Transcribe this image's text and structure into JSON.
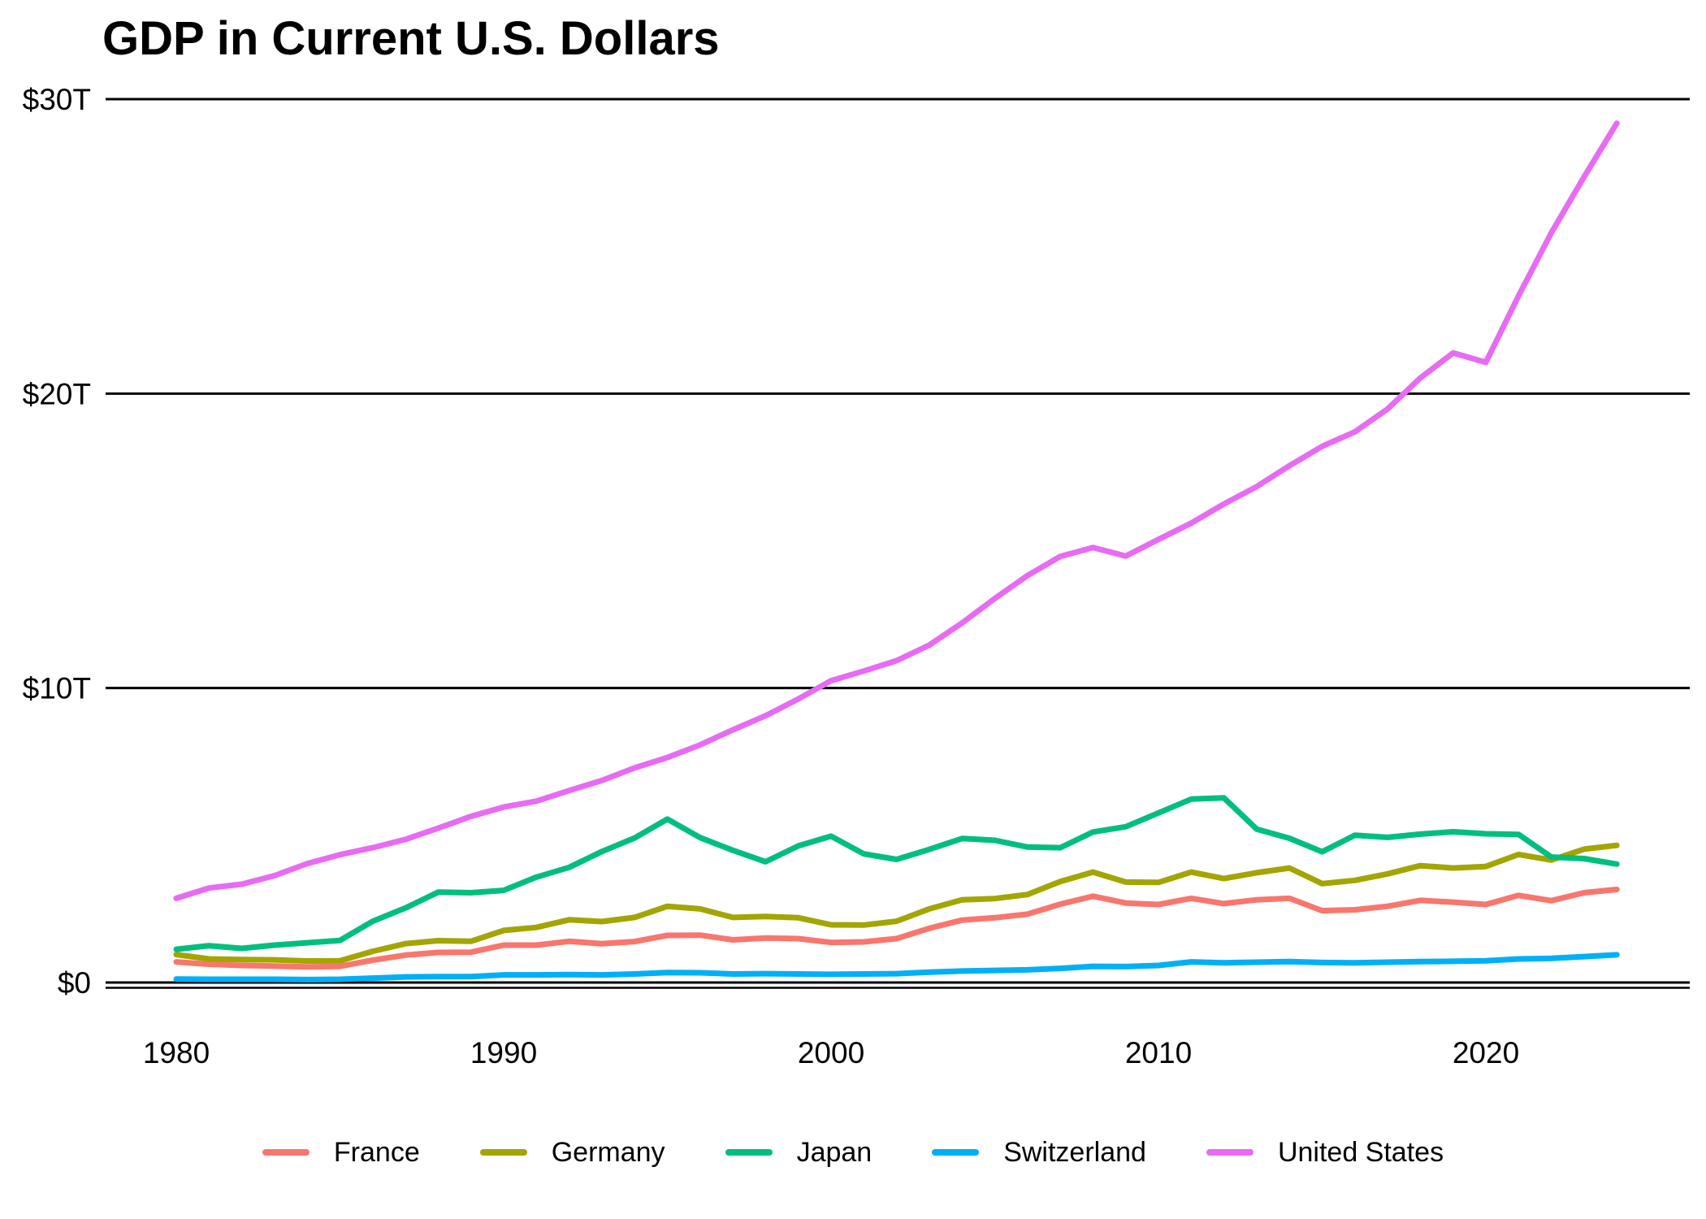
{
  "title": "GDP in Current U.S. Dollars",
  "chart_data": {
    "type": "line",
    "title": "GDP in Current U.S. Dollars",
    "unit": "trillions of current U.S. dollars",
    "grid": "horizontal-only",
    "legend_position": "bottom",
    "axis_color": "#000000",
    "xlim": [
      1980,
      2024
    ],
    "ylim": [
      0,
      30
    ],
    "x_ticks": [
      {
        "value": 1980,
        "label": "1980"
      },
      {
        "value": 1990,
        "label": "1990"
      },
      {
        "value": 2000,
        "label": "2000"
      },
      {
        "value": 2010,
        "label": "2010"
      },
      {
        "value": 2020,
        "label": "2020"
      }
    ],
    "y_ticks": [
      {
        "value": 0,
        "label": "$0"
      },
      {
        "value": 10,
        "label": "$10T"
      },
      {
        "value": 20,
        "label": "$20T"
      },
      {
        "value": 30,
        "label": "$30T"
      }
    ],
    "years": [
      1980,
      1981,
      1982,
      1983,
      1984,
      1985,
      1986,
      1987,
      1988,
      1989,
      1990,
      1991,
      1992,
      1993,
      1994,
      1995,
      1996,
      1997,
      1998,
      1999,
      2000,
      2001,
      2002,
      2003,
      2004,
      2005,
      2006,
      2007,
      2008,
      2009,
      2010,
      2011,
      2012,
      2013,
      2014,
      2015,
      2016,
      2017,
      2018,
      2019,
      2020,
      2021,
      2022,
      2023,
      2024
    ],
    "series": [
      {
        "name": "France",
        "color": "#F8766D",
        "values": [
          0.7,
          0.62,
          0.58,
          0.56,
          0.53,
          0.55,
          0.76,
          0.93,
          1.02,
          1.03,
          1.27,
          1.27,
          1.4,
          1.32,
          1.39,
          1.6,
          1.61,
          1.45,
          1.51,
          1.49,
          1.36,
          1.38,
          1.49,
          1.84,
          2.12,
          2.2,
          2.32,
          2.66,
          2.93,
          2.7,
          2.65,
          2.86,
          2.68,
          2.81,
          2.86,
          2.44,
          2.47,
          2.59,
          2.79,
          2.73,
          2.65,
          2.96,
          2.78,
          3.05,
          3.16
        ]
      },
      {
        "name": "Germany",
        "color": "#A3A500",
        "values": [
          0.95,
          0.8,
          0.78,
          0.77,
          0.73,
          0.74,
          1.06,
          1.32,
          1.42,
          1.4,
          1.77,
          1.87,
          2.13,
          2.07,
          2.21,
          2.59,
          2.5,
          2.21,
          2.24,
          2.2,
          1.96,
          1.95,
          2.08,
          2.5,
          2.81,
          2.85,
          2.99,
          3.43,
          3.75,
          3.41,
          3.4,
          3.75,
          3.53,
          3.73,
          3.89,
          3.36,
          3.47,
          3.69,
          3.97,
          3.89,
          3.94,
          4.35,
          4.16,
          4.53,
          4.66
        ]
      },
      {
        "name": "Japan",
        "color": "#00BF7D",
        "values": [
          1.13,
          1.25,
          1.16,
          1.27,
          1.35,
          1.43,
          2.08,
          2.53,
          3.07,
          3.05,
          3.13,
          3.58,
          3.91,
          4.45,
          4.91,
          5.55,
          4.92,
          4.49,
          4.1,
          4.64,
          4.97,
          4.37,
          4.18,
          4.52,
          4.89,
          4.83,
          4.6,
          4.58,
          5.11,
          5.29,
          5.76,
          6.23,
          6.27,
          5.21,
          4.9,
          4.44,
          5.0,
          4.93,
          5.04,
          5.12,
          5.05,
          5.03,
          4.26,
          4.21,
          4.02
        ]
      },
      {
        "name": "Switzerland",
        "color": "#00B0F6",
        "values": [
          0.12,
          0.11,
          0.11,
          0.11,
          0.1,
          0.11,
          0.15,
          0.19,
          0.2,
          0.2,
          0.26,
          0.26,
          0.27,
          0.26,
          0.29,
          0.34,
          0.33,
          0.29,
          0.3,
          0.29,
          0.28,
          0.29,
          0.3,
          0.35,
          0.39,
          0.41,
          0.43,
          0.48,
          0.55,
          0.54,
          0.58,
          0.7,
          0.67,
          0.69,
          0.71,
          0.68,
          0.67,
          0.69,
          0.71,
          0.72,
          0.74,
          0.8,
          0.82,
          0.88,
          0.94
        ]
      },
      {
        "name": "United States",
        "color": "#E76BF3",
        "values": [
          2.86,
          3.21,
          3.34,
          3.63,
          4.04,
          4.34,
          4.58,
          4.86,
          5.24,
          5.64,
          5.96,
          6.16,
          6.52,
          6.86,
          7.29,
          7.64,
          8.07,
          8.58,
          9.06,
          9.63,
          10.25,
          10.58,
          10.93,
          11.46,
          12.21,
          13.04,
          13.82,
          14.47,
          14.77,
          14.48,
          15.05,
          15.6,
          16.25,
          16.84,
          17.55,
          18.21,
          18.7,
          19.48,
          20.53,
          21.38,
          21.06,
          23.32,
          25.46,
          27.36,
          29.18
        ]
      }
    ]
  }
}
